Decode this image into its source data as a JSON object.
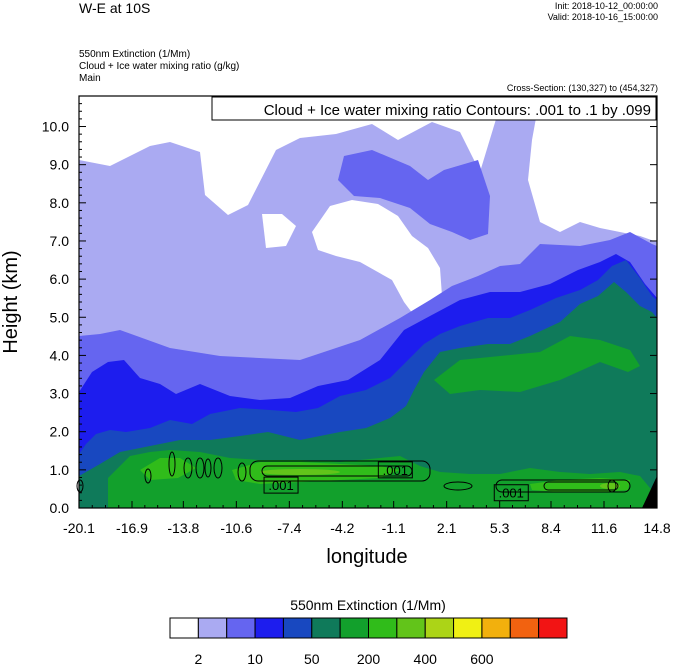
{
  "header": {
    "title": "W-E at 10S",
    "init": "Init: 2018-10-12_00:00:00",
    "valid": "Valid: 2018-10-16_15:00:00",
    "subtitle_lines": [
      "550nm Extinction   (1/Mm)",
      "Cloud + Ice water mixing ratio   (g/kg)",
      "Main"
    ],
    "cross_section": "Cross-Section: (130,327) to (454,327)",
    "contour_info": "Cloud + Ice water mixing ratio Contours: .001 to .1 by .099"
  },
  "chart_data": {
    "type": "heatmap",
    "xlabel": "longitude",
    "ylabel": "Height (km)",
    "xlim": [
      -20.1,
      14.8
    ],
    "ylim": [
      0,
      10.8
    ],
    "x_ticks": [
      "-20.1",
      "-16.9",
      "-13.8",
      "-10.6",
      "-7.4",
      "-4.2",
      "-1.1",
      "2.1",
      "5.3",
      "8.4",
      "11.6",
      "14.8"
    ],
    "y_ticks": [
      "0.0",
      "1.0",
      "2.0",
      "3.0",
      "4.0",
      "5.0",
      "6.0",
      "7.0",
      "8.0",
      "9.0",
      "10.0"
    ],
    "contour_labels": [
      {
        "text": ".001",
        "x": -7.9,
        "y": 0.6
      },
      {
        "text": ".001",
        "x": -1.0,
        "y": 1.0
      },
      {
        "text": ".001",
        "x": 6.0,
        "y": 0.4
      }
    ],
    "colorbar": {
      "title": "550nm Extinction  (1/Mm)",
      "colors": [
        "#ffffff",
        "#aaaaf2",
        "#6565f0",
        "#1d1dee",
        "#1848c0",
        "#0f7a5a",
        "#12a02c",
        "#30bc1a",
        "#62c41a",
        "#acd417",
        "#f0f014",
        "#f2b00d",
        "#f26210",
        "#f21414"
      ],
      "labels": [
        "2",
        "10",
        "50",
        "200",
        "400",
        "600"
      ]
    }
  }
}
